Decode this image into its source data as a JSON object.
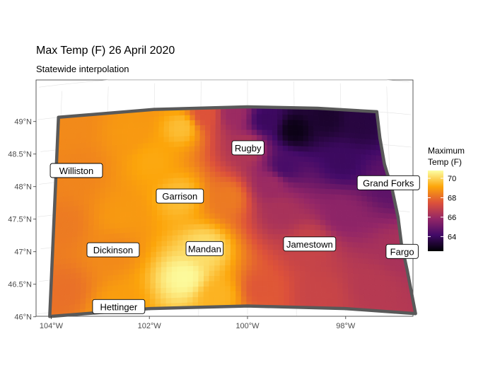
{
  "title": "Max Temp (F) 26 April 2020",
  "subtitle": "Statewide interpolation",
  "legend": {
    "title_lines": [
      "Maximum",
      "Temp (F)"
    ],
    "range": [
      62.5,
      70.8
    ],
    "ticks": [
      64,
      66,
      68,
      70
    ],
    "colors": [
      "#000004",
      "#420a68",
      "#932667",
      "#dd513a",
      "#fca50a",
      "#fcffa4"
    ]
  },
  "chart_data": {
    "type": "heatmap",
    "title": "Max Temp (F) 26 April 2020",
    "subtitle": "Statewide interpolation",
    "x_ticks": [
      "104°W",
      "102°W",
      "100°W",
      "98°W"
    ],
    "y_ticks": [
      "46°N",
      "46.5°N",
      "47°N",
      "47.5°N",
      "48°N",
      "48.5°N",
      "49°N"
    ],
    "grid": true,
    "legend_position": "right",
    "cities": [
      {
        "name": "Williston",
        "lon": -103.62,
        "lat": 48.15
      },
      {
        "name": "Rugby",
        "lon": -99.99,
        "lat": 48.37
      },
      {
        "name": "Grand Forks",
        "lon": -97.03,
        "lat": 47.92
      },
      {
        "name": "Garrison",
        "lon": -101.42,
        "lat": 47.65
      },
      {
        "name": "Fargo",
        "lon": -96.79,
        "lat": 46.88
      },
      {
        "name": "Jamestown",
        "lon": -98.71,
        "lat": 46.91
      },
      {
        "name": "Dickinson",
        "lon": -102.79,
        "lat": 46.88
      },
      {
        "name": "Mandan",
        "lon": -100.89,
        "lat": 46.83
      },
      {
        "name": "Hettinger",
        "lon": -102.64,
        "lat": 46.0
      }
    ],
    "temperature_anchors": [
      {
        "lon": -103.9,
        "lat": 48.8,
        "value": 68.6
      },
      {
        "lon": -103.6,
        "lat": 48.15,
        "value": 68.5
      },
      {
        "lon": -102.5,
        "lat": 48.7,
        "value": 68.9
      },
      {
        "lon": -101.4,
        "lat": 48.7,
        "value": 69.6
      },
      {
        "lon": -100.9,
        "lat": 48.9,
        "value": 67.5
      },
      {
        "lon": -100.3,
        "lat": 48.9,
        "value": 66.0
      },
      {
        "lon": -99.99,
        "lat": 48.37,
        "value": 66.5
      },
      {
        "lon": -99.6,
        "lat": 48.8,
        "value": 64.0
      },
      {
        "lon": -99.0,
        "lat": 48.65,
        "value": 62.8
      },
      {
        "lon": -98.3,
        "lat": 48.85,
        "value": 63.2
      },
      {
        "lon": -97.6,
        "lat": 48.8,
        "value": 63.5
      },
      {
        "lon": -97.03,
        "lat": 47.92,
        "value": 64.7
      },
      {
        "lon": -98.0,
        "lat": 48.2,
        "value": 64.0
      },
      {
        "lon": -99.2,
        "lat": 48.1,
        "value": 64.3
      },
      {
        "lon": -99.5,
        "lat": 47.8,
        "value": 66.0
      },
      {
        "lon": -99.3,
        "lat": 47.4,
        "value": 66.3
      },
      {
        "lon": -98.0,
        "lat": 47.4,
        "value": 65.7
      },
      {
        "lon": -96.79,
        "lat": 46.88,
        "value": 66.3
      },
      {
        "lon": -98.71,
        "lat": 46.91,
        "value": 67.0
      },
      {
        "lon": -97.4,
        "lat": 46.3,
        "value": 66.6
      },
      {
        "lon": -98.5,
        "lat": 46.15,
        "value": 67.0
      },
      {
        "lon": -99.7,
        "lat": 46.2,
        "value": 67.6
      },
      {
        "lon": -100.89,
        "lat": 46.83,
        "value": 70.2
      },
      {
        "lon": -101.3,
        "lat": 46.4,
        "value": 70.7
      },
      {
        "lon": -100.6,
        "lat": 46.1,
        "value": 69.4
      },
      {
        "lon": -101.42,
        "lat": 47.65,
        "value": 69.6
      },
      {
        "lon": -100.4,
        "lat": 47.6,
        "value": 68.3
      },
      {
        "lon": -102.0,
        "lat": 48.2,
        "value": 69.2
      },
      {
        "lon": -102.79,
        "lat": 46.88,
        "value": 68.6
      },
      {
        "lon": -102.64,
        "lat": 46.0,
        "value": 69.0
      },
      {
        "lon": -103.8,
        "lat": 46.3,
        "value": 68.1
      },
      {
        "lon": -103.9,
        "lat": 47.3,
        "value": 68.3
      },
      {
        "lon": -102.6,
        "lat": 47.4,
        "value": 68.9
      }
    ]
  }
}
